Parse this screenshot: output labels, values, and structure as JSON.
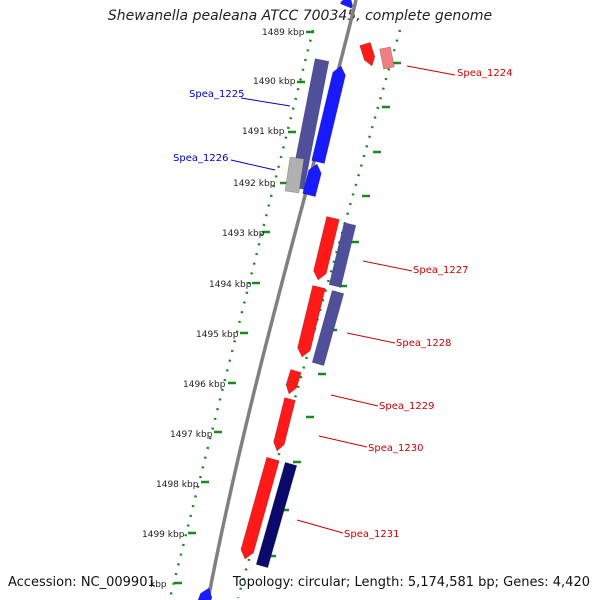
{
  "title": "Shewanella pealeana ATCC 700345, complete genome",
  "footer": {
    "accession": "Accession: NC_009901",
    "topology": "Topology: circular; Length: 5,174,581 bp; Genes: 4,420"
  },
  "scale_labels": [
    "1489 kbp",
    "1490 kbp",
    "1491 kbp",
    "1492 kbp",
    "1493 kbp",
    "1494 kbp",
    "1495 kbp",
    "1496 kbp",
    "1497 kbp",
    "1498 kbp",
    "1499 kbp",
    "kbp"
  ],
  "gene_labels": {
    "left": [
      "Spea_1225",
      "Spea_1226"
    ],
    "right": [
      "Spea_1224",
      "Spea_1227",
      "Spea_1228",
      "Spea_1229",
      "Spea_1230",
      "Spea_1231"
    ]
  },
  "colors": {
    "forward": "#1a1aff",
    "reverse": "#ff1a1a",
    "dark_blue": "#3a3a8a",
    "navy": "#0a0a6a",
    "purple": "#50509a",
    "gray": "#b0b0b0",
    "light_red": "#f08080",
    "backbone": "#808080",
    "ticks": "#1a8a1a",
    "left_label": "#0000cc",
    "right_label": "#cc0000"
  }
}
